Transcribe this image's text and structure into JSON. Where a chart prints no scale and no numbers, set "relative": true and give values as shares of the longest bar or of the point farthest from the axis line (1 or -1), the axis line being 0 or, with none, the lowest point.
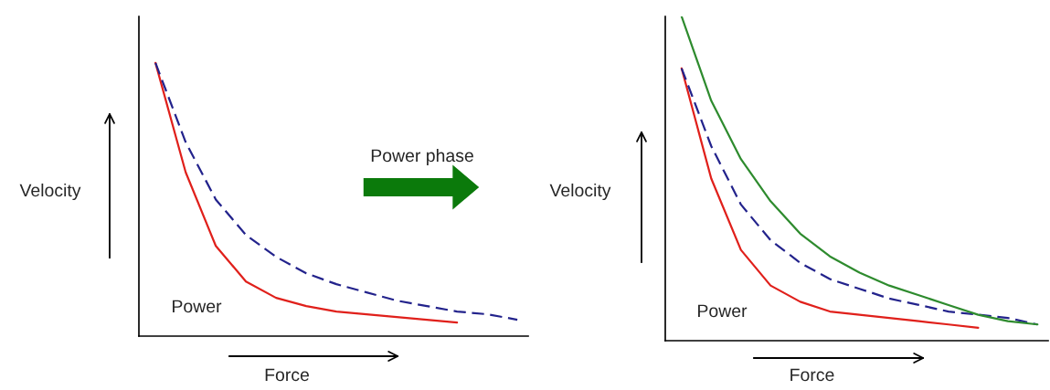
{
  "chart_data": [
    {
      "type": "line",
      "relative": true,
      "xlabel": "Force",
      "ylabel": "Velocity",
      "legend": false,
      "annotations": [
        "Power",
        "Power phase"
      ],
      "categories": [
        null,
        null,
        null,
        null,
        null,
        null,
        null,
        null,
        null,
        null,
        null,
        null,
        null
      ],
      "series": [
        {
          "color": "#e0201b",
          "line_style": "solid",
          "values": [
            1.0,
            0.6,
            0.33,
            0.2,
            0.14,
            0.11,
            0.09,
            0.08,
            0.07,
            0.06,
            0.05,
            null,
            null
          ]
        },
        {
          "color": "#23238c",
          "line_style": "dashed",
          "values": [
            1.0,
            0.71,
            0.5,
            0.37,
            0.29,
            0.23,
            0.19,
            0.16,
            0.13,
            0.11,
            0.09,
            0.08,
            0.06
          ]
        }
      ]
    },
    {
      "type": "line",
      "relative": true,
      "xlabel": "Force",
      "ylabel": "Velocity",
      "legend": false,
      "annotations": [
        "Power"
      ],
      "categories": [
        null,
        null,
        null,
        null,
        null,
        null,
        null,
        null,
        null,
        null,
        null,
        null,
        null
      ],
      "series": [
        {
          "color": "#e0201b",
          "line_style": "solid",
          "values": [
            0.84,
            0.5,
            0.28,
            0.17,
            0.12,
            0.09,
            0.08,
            0.07,
            0.06,
            0.05,
            0.04,
            null,
            null
          ]
        },
        {
          "color": "#23238c",
          "line_style": "dashed",
          "values": [
            0.84,
            0.6,
            0.42,
            0.31,
            0.24,
            0.19,
            0.16,
            0.13,
            0.11,
            0.09,
            0.08,
            0.07,
            0.05
          ]
        },
        {
          "color": "#2e8b2e",
          "line_style": "solid",
          "values": [
            1.0,
            0.74,
            0.56,
            0.43,
            0.33,
            0.26,
            0.21,
            0.17,
            0.14,
            0.11,
            0.08,
            0.06,
            0.05
          ]
        }
      ]
    }
  ]
}
